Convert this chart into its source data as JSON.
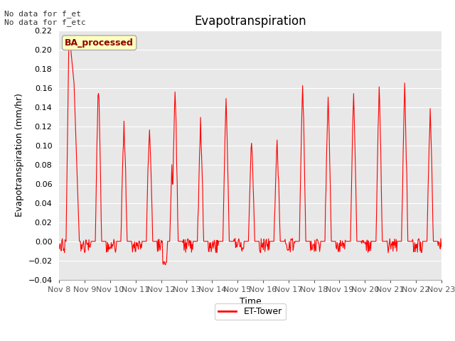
{
  "title": "Evapotranspiration",
  "xlabel": "Time",
  "ylabel": "Evapotranspiration (mm/hr)",
  "ylim": [
    -0.04,
    0.22
  ],
  "yticks": [
    -0.04,
    -0.02,
    0.0,
    0.02,
    0.04,
    0.06,
    0.08,
    0.1,
    0.12,
    0.14,
    0.16,
    0.18,
    0.2,
    0.22
  ],
  "xtick_labels": [
    "Nov 8",
    "Nov 9",
    "Nov 10",
    "Nov 11",
    "Nov 12",
    "Nov 13",
    "Nov 14",
    "Nov 15",
    "Nov 16",
    "Nov 17",
    "Nov 18",
    "Nov 19",
    "Nov 20",
    "Nov 21",
    "Nov 22",
    "Nov 23"
  ],
  "line_color": "#ff0000",
  "line_width": 0.8,
  "fig_bg_color": "#ffffff",
  "plot_bg_color": "#e8e8e8",
  "grid_color": "#ffffff",
  "legend_label": "ET-Tower",
  "legend_box_label": "BA_processed",
  "note_line1": "No data for f_et",
  "note_line2": "No data for f_etc",
  "title_fontsize": 12,
  "axis_label_fontsize": 9,
  "tick_fontsize": 8,
  "note_fontsize": 8,
  "legend_fontsize": 9,
  "daily_peaks": [
    0.2,
    0.165,
    0.12,
    0.12,
    0.158,
    0.123,
    0.144,
    0.103,
    0.103,
    0.165,
    0.153,
    0.153,
    0.158,
    0.158,
    0.135
  ],
  "n_days": 15,
  "pts_per_day": 48
}
